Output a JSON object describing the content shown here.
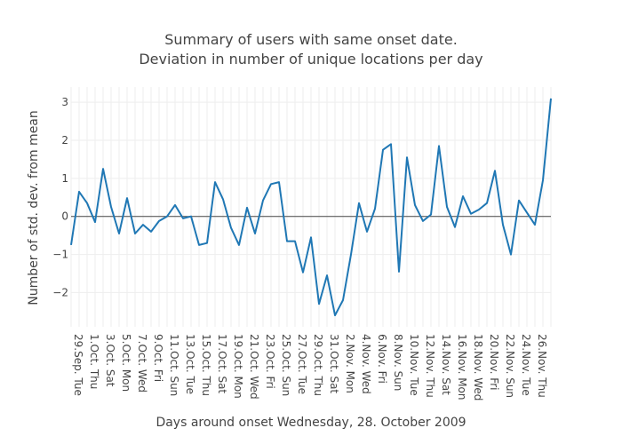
{
  "chart_data": {
    "type": "line",
    "title_line1": "Summary of users with same onset date.",
    "title_line2": "Deviation in number of unique locations per day",
    "xlabel": "Days around onset Wednesday, 28. October 2009",
    "ylabel": "Number of std. dev. from mean",
    "ylim": [
      -2.9,
      3.4
    ],
    "y_ticks": [
      -2,
      -1,
      0,
      1,
      2,
      3
    ],
    "y_tick_labels": [
      "−2",
      "−1",
      "0",
      "1",
      "2",
      "3"
    ],
    "grid": true,
    "x_tick_labels": [
      "29.Sep. Tue",
      "1.Oct. Thu",
      "3.Oct. Sat",
      "5.Oct. Mon",
      "7.Oct. Wed",
      "9.Oct. Fri",
      "11.Oct. Sun",
      "13.Oct. Tue",
      "15.Oct. Thu",
      "17.Oct. Sat",
      "19.Oct. Mon",
      "21.Oct. Wed",
      "23.Oct. Fri",
      "25.Oct. Sun",
      "27.Oct. Tue",
      "29.Oct. Thu",
      "31.Oct. Sat",
      "2.Nov. Mon",
      "4.Nov. Wed",
      "6.Nov. Fri",
      "8.Nov. Sun",
      "10.Nov. Tue",
      "12.Nov. Thu",
      "14.Nov. Sat",
      "16.Nov. Mon",
      "18.Nov. Wed",
      "20.Nov. Fri",
      "22.Nov. Sun",
      "24.Nov. Tue",
      "26.Nov. Thu"
    ],
    "series": [
      {
        "color": "#1f77b4",
        "values": [
          -0.75,
          0.65,
          0.35,
          -0.15,
          1.25,
          0.25,
          -0.45,
          0.48,
          -0.45,
          -0.22,
          -0.4,
          -0.12,
          0.0,
          0.3,
          -0.05,
          0.0,
          -0.75,
          -0.7,
          0.9,
          0.45,
          -0.3,
          -0.75,
          0.23,
          -0.45,
          0.42,
          0.85,
          0.9,
          -0.65,
          -0.65,
          -1.47,
          -0.55,
          -2.3,
          -1.55,
          -2.6,
          -2.2,
          -1.0,
          0.35,
          -0.4,
          0.2,
          1.75,
          1.9,
          -1.45,
          1.55,
          0.3,
          -0.12,
          0.05,
          1.85,
          0.25,
          -0.28,
          0.53,
          0.07,
          0.18,
          0.35,
          1.2,
          -0.22,
          -1.0,
          0.42,
          0.1,
          -0.22,
          0.95,
          3.1
        ]
      }
    ]
  }
}
